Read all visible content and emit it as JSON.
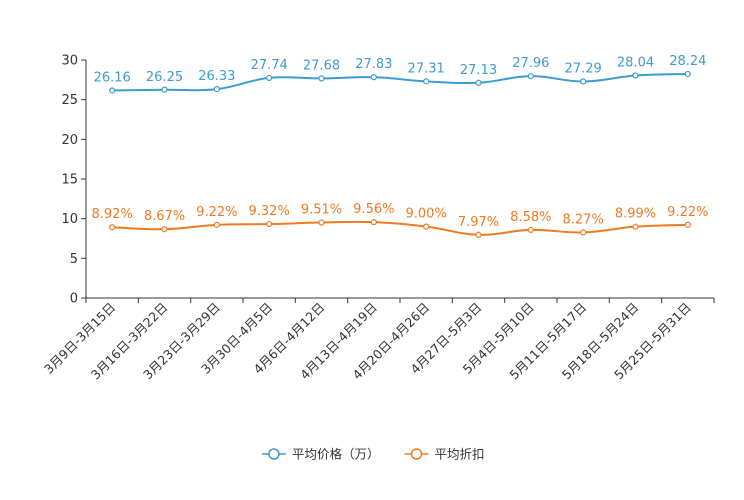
{
  "chart_data": {
    "type": "line",
    "title": "",
    "xlabel": "",
    "ylabel": "",
    "ylim": [
      0,
      30
    ],
    "yticks": [
      0,
      5,
      10,
      15,
      20,
      25,
      30
    ],
    "grid": false,
    "legend_position": "bottom-center",
    "categories": [
      "3月9日-3月15日",
      "3月16日-3月22日",
      "3月23日-3月29日",
      "3月30日-4月5日",
      "4月6日-4月12日",
      "4月13日-4月19日",
      "4月20日-4月26日",
      "4月27日-5月3日",
      "5月4日-5月10日",
      "5月11日-5月17日",
      "5月18日-5月24日",
      "5月25日-5月31日"
    ],
    "series": [
      {
        "name": "平均价格（万）",
        "color": "#3d9ccf",
        "values": [
          26.16,
          26.25,
          26.33,
          27.74,
          27.68,
          27.83,
          27.31,
          27.13,
          27.96,
          27.29,
          28.04,
          28.24
        ],
        "labels": [
          "26.16",
          "26.25",
          "26.33",
          "27.74",
          "27.68",
          "27.83",
          "27.31",
          "27.13",
          "27.96",
          "27.29",
          "28.04",
          "28.24"
        ]
      },
      {
        "name": "平均折扣",
        "color": "#f07a22",
        "values": [
          8.92,
          8.67,
          9.22,
          9.32,
          9.51,
          9.56,
          9.0,
          7.97,
          8.58,
          8.27,
          8.99,
          9.22
        ],
        "labels": [
          "8.92%",
          "8.67%",
          "9.22%",
          "9.32%",
          "9.51%",
          "9.56%",
          "9.00%",
          "7.97%",
          "8.58%",
          "8.27%",
          "8.99%",
          "9.22%"
        ]
      }
    ]
  }
}
